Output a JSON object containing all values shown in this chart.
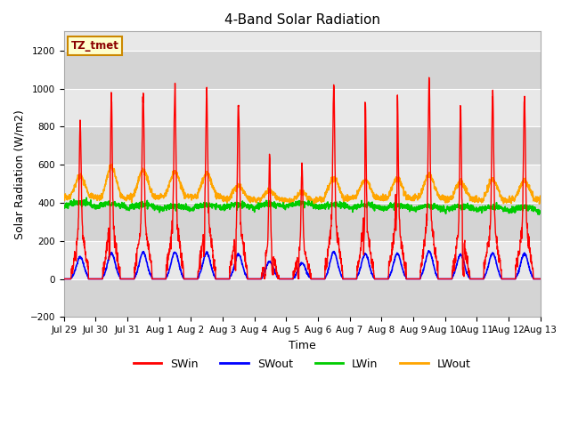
{
  "title": "4-Band Solar Radiation",
  "xlabel": "Time",
  "ylabel": "Solar Radiation (W/m2)",
  "ylim": [
    -200,
    1300
  ],
  "yticks": [
    -200,
    0,
    200,
    400,
    600,
    800,
    1000,
    1200
  ],
  "label_tztmet": "TZ_tmet",
  "colors": {
    "SWin": "#ff0000",
    "SWout": "#0000ff",
    "LWin": "#00cc00",
    "LWout": "#ffa500"
  },
  "legend_labels": [
    "SWin",
    "SWout",
    "LWin",
    "LWout"
  ],
  "xticklabels": [
    "Jul 29",
    "Jul 30",
    "Jul 31",
    "Aug 1",
    "Aug 2",
    "Aug 3",
    "Aug 4",
    "Aug 5",
    "Aug 6",
    "Aug 7",
    "Aug 8",
    "Aug 9",
    "Aug 10",
    "Aug 11",
    "Aug 12",
    "Aug 13"
  ],
  "background_color": "#ffffff",
  "plot_facecolor": "#e8e8e8",
  "band_color_light": "#d8d8d8",
  "band_color_dark": "#c8c8c8"
}
